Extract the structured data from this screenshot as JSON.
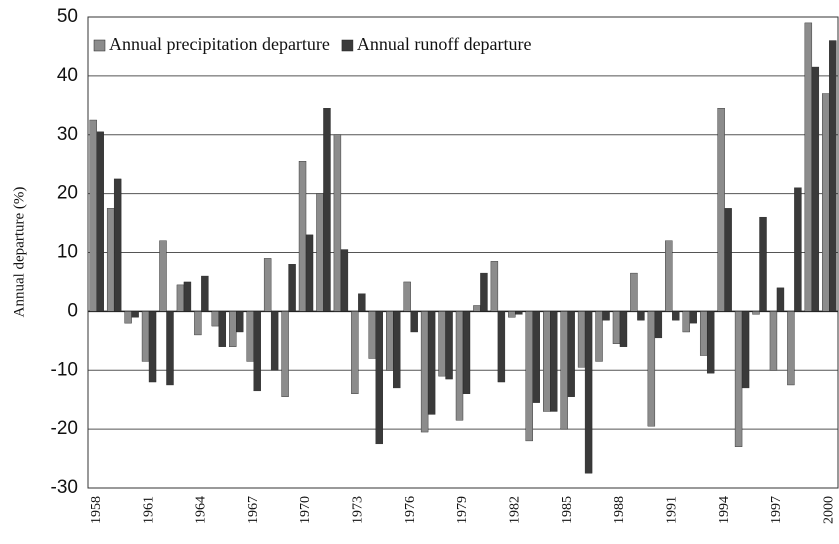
{
  "chart_data": {
    "type": "bar",
    "y_label": "Annual departure (%)",
    "categories": [
      1958,
      null,
      null,
      1961,
      null,
      null,
      1964,
      null,
      null,
      1967,
      null,
      null,
      1970,
      null,
      null,
      1973,
      null,
      null,
      1976,
      null,
      null,
      1979,
      null,
      null,
      1982,
      null,
      null,
      1985,
      null,
      null,
      1988,
      null,
      null,
      1991,
      null,
      null,
      1994,
      null,
      null,
      1997,
      null,
      null,
      2000
    ],
    "series": [
      {
        "name": "Annual precipitation departure",
        "color": "#8c8c8c",
        "values": [
          32.5,
          17.5,
          -2,
          -8.5,
          12,
          4.5,
          -4,
          -2.5,
          -6,
          -8.5,
          9,
          -14.5,
          25.5,
          20,
          30,
          -14,
          -8,
          -10,
          5,
          -20.5,
          -11,
          -18.5,
          1,
          8.5,
          -1,
          -22,
          -17,
          -20,
          -9.5,
          -8.5,
          -5.5,
          6.5,
          -19.5,
          12,
          -3.5,
          -7.5,
          34.5,
          -23,
          -0.5,
          -10,
          -12.5,
          49,
          37
        ]
      },
      {
        "name": "Annual runoff departure",
        "color": "#3a3a3a",
        "values": [
          30.5,
          22.5,
          -1,
          -12,
          -12.5,
          5,
          6,
          -6,
          -3.5,
          -13.5,
          -10,
          8,
          13,
          34.5,
          10.5,
          3,
          -22.5,
          -13,
          -3.5,
          -17.5,
          -11.5,
          -14,
          6.5,
          -12,
          -0.5,
          -15.5,
          -17,
          -14.5,
          -27.5,
          -1.5,
          -6,
          -1.5,
          -4.5,
          -1.5,
          -2,
          -10.5,
          17.5,
          -13,
          16,
          4,
          21,
          41.5,
          46
        ]
      }
    ],
    "ylim": [
      -30,
      50
    ],
    "yticks": [
      -30,
      -20,
      -10,
      0,
      10,
      20,
      30,
      40,
      50
    ],
    "grid": true,
    "legend": "top-left"
  }
}
